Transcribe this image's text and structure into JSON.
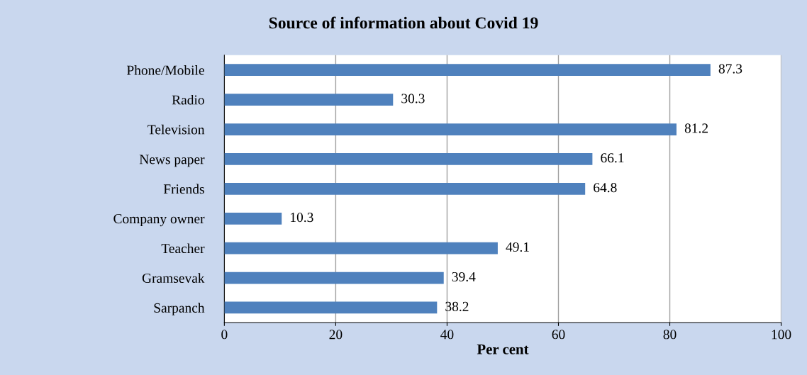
{
  "chart_data": {
    "type": "bar",
    "orientation": "horizontal",
    "title": "Source of information about Covid 19",
    "xlabel": "Per cent",
    "categories": [
      "Phone/Mobile",
      "Radio",
      "Television",
      "News paper",
      "Friends",
      "Company owner",
      "Teacher",
      "Gramsevak",
      "Sarpanch"
    ],
    "values": [
      87.3,
      30.3,
      81.2,
      66.1,
      64.8,
      10.3,
      49.1,
      39.4,
      38.2
    ],
    "color": "#4f81bd",
    "xlim": [
      0,
      100
    ],
    "xticks": [
      0,
      20,
      40,
      60,
      80,
      100
    ],
    "grid": "x",
    "data_labels": true
  }
}
